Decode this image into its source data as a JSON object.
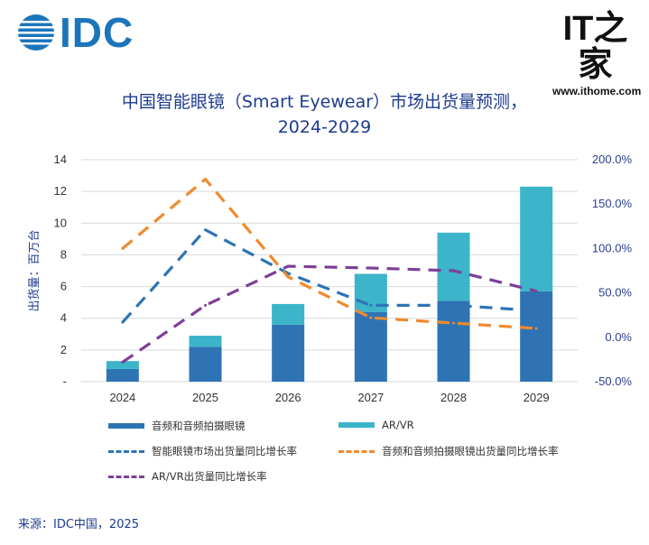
{
  "header": {
    "logo_text": "IDC",
    "watermark_mark": "IT之家",
    "watermark_url": "www.ithome.com"
  },
  "title_line1": "中国智能眼镜（Smart Eyewear）市场出货量预测，",
  "title_line2": "2024-2029",
  "source": "来源：IDC中国，2025",
  "colors": {
    "audio_bar": "#2e74b5",
    "arvr_bar": "#3cb4c9",
    "total_line": "#2e74b5",
    "audio_line": "#f08a2c",
    "arvr_line": "#7e3f98",
    "title": "#1f3b8f"
  },
  "chart_data": {
    "type": "bar",
    "categories": [
      "2024",
      "2025",
      "2026",
      "2027",
      "2028",
      "2029"
    ],
    "ylabel": "出货量：百万台",
    "ylim": [
      0,
      14
    ],
    "yticks": [
      "-",
      "2",
      "4",
      "6",
      "8",
      "10",
      "12",
      "14"
    ],
    "y2lim": [
      -50,
      200
    ],
    "y2ticks": [
      "-50.0%",
      "0.0%",
      "50.0%",
      "100.0%",
      "150.0%",
      "200.0%"
    ],
    "grid": true,
    "legend_position": "bottom",
    "series": [
      {
        "name": "音频和音频拍摄眼镜",
        "kind": "bar",
        "stack": "s",
        "values": [
          0.8,
          2.2,
          3.6,
          4.4,
          5.1,
          5.7
        ]
      },
      {
        "name": "AR/VR",
        "kind": "bar",
        "stack": "s",
        "values": [
          0.5,
          0.7,
          1.3,
          2.4,
          4.3,
          6.6
        ]
      },
      {
        "name": "智能眼镜市场出货量同比增长率",
        "kind": "line",
        "axis": "right",
        "values": [
          17,
          121,
          72,
          36,
          36,
          30
        ]
      },
      {
        "name": "音频和音频拍摄眼镜出货量同比增长率",
        "kind": "line",
        "axis": "right",
        "values": [
          100,
          178,
          68,
          22,
          16,
          10
        ]
      },
      {
        "name": "AR/VR出货量同比增长率",
        "kind": "line",
        "axis": "right",
        "values": [
          -28,
          36,
          80,
          78,
          75,
          52
        ]
      }
    ]
  }
}
